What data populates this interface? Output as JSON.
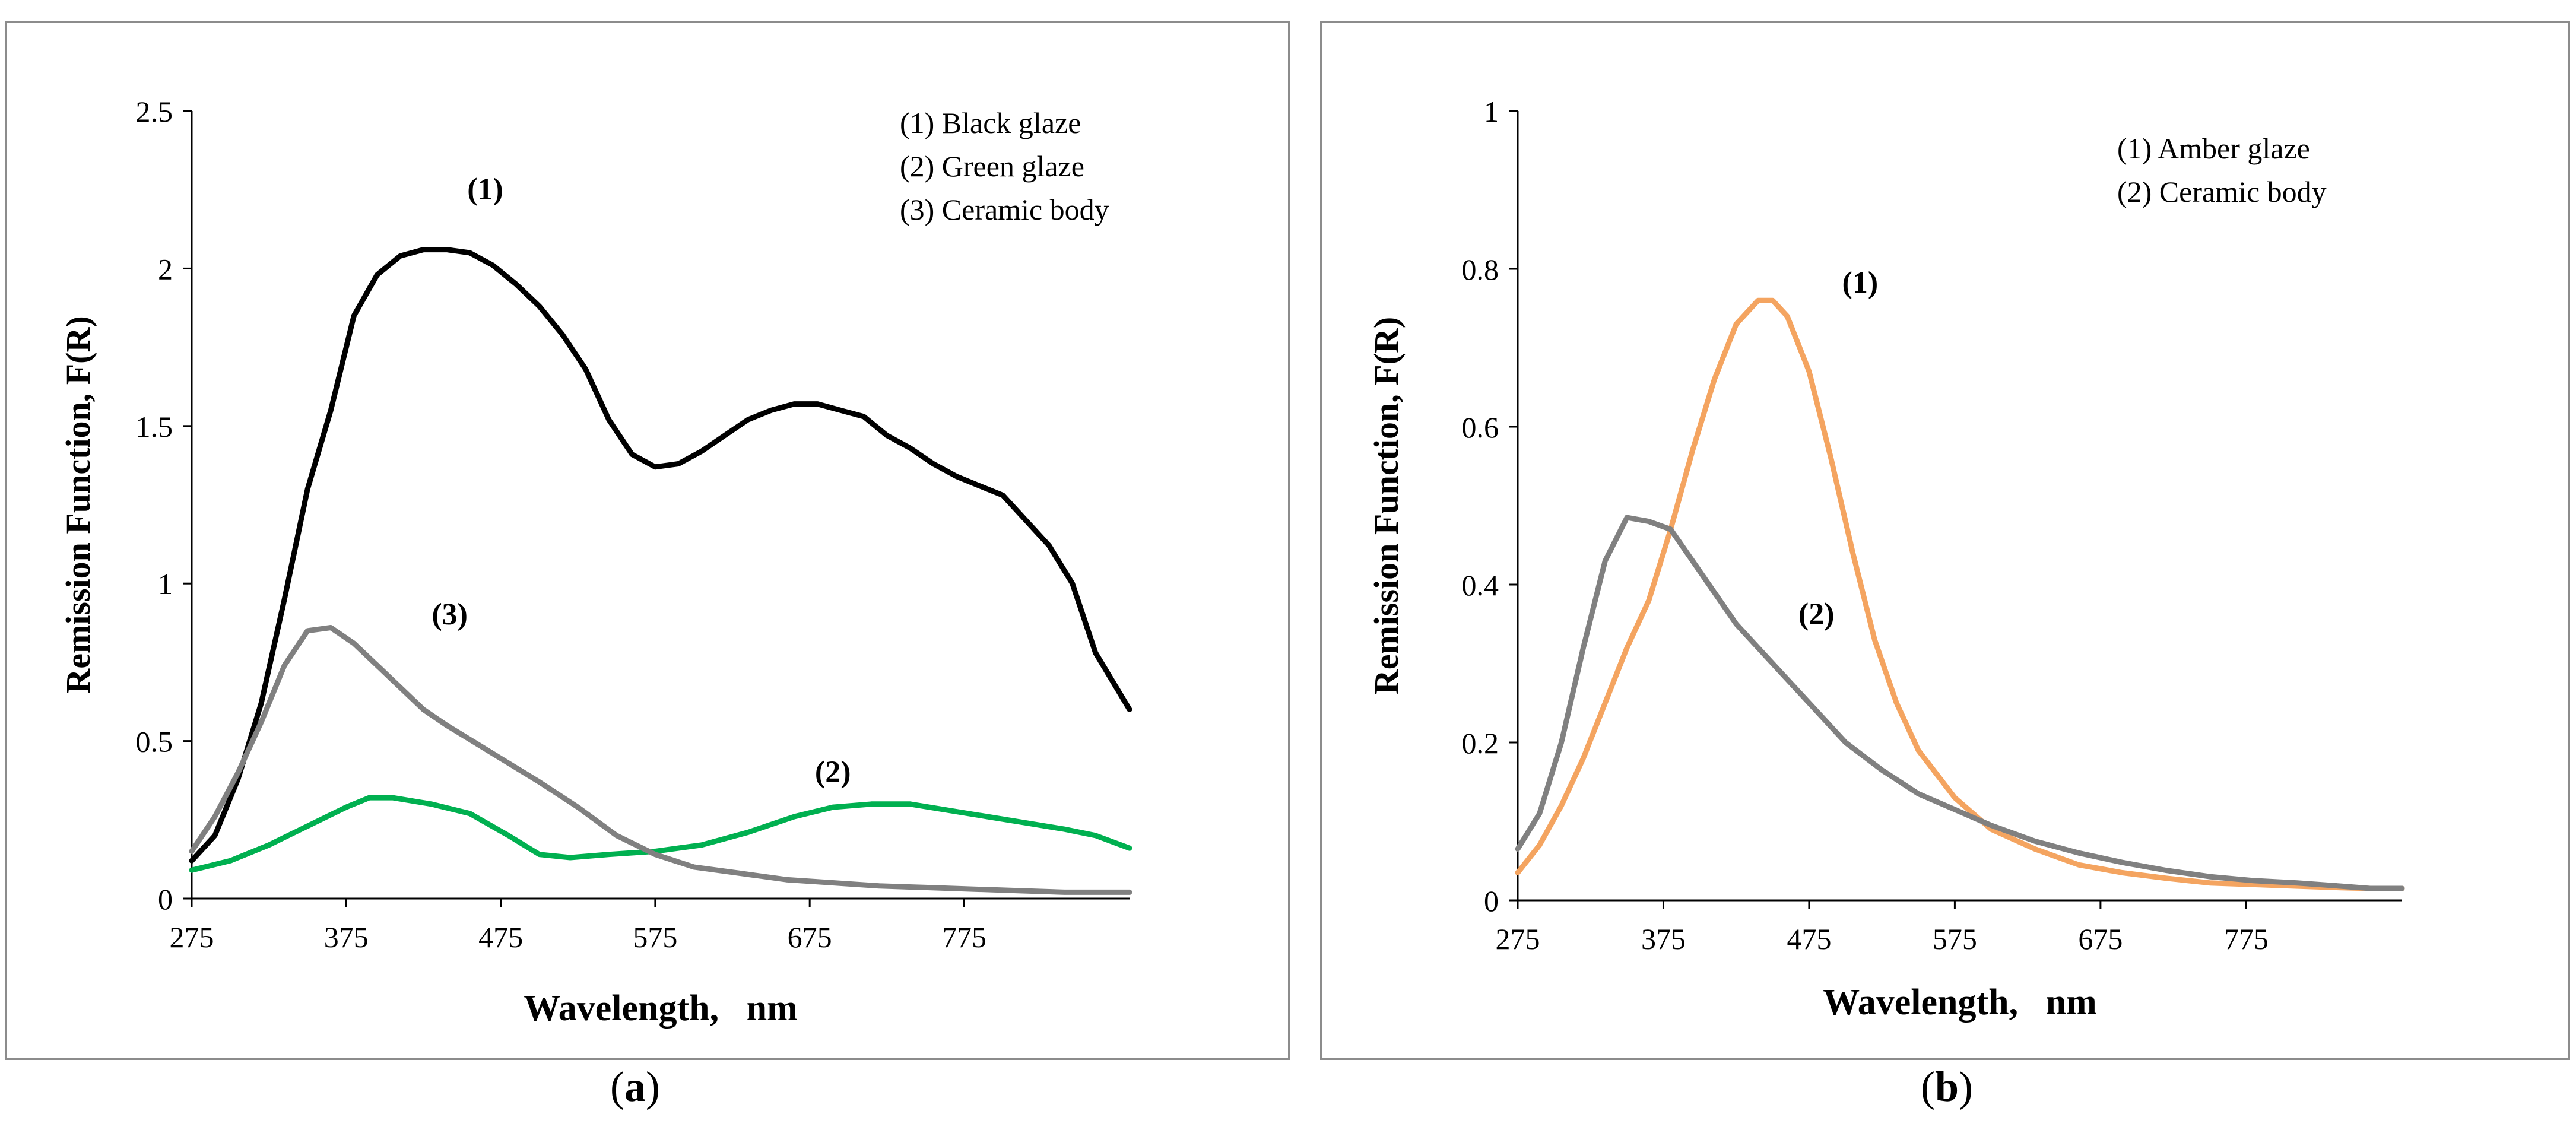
{
  "chart_data": [
    {
      "id": "a",
      "type": "line",
      "caption_letter": "a",
      "xlabel": "Wavelength,   nm",
      "ylabel": "Remission Function, F(R)",
      "xlim": [
        275,
        882
      ],
      "ylim": [
        0,
        2.5
      ],
      "x_ticks": [
        275,
        375,
        475,
        575,
        675,
        775
      ],
      "y_ticks": [
        0,
        0.5,
        1,
        1.5,
        2,
        2.5
      ],
      "y_tick_labels": [
        "0",
        "0.5",
        "1",
        "1.5",
        "2",
        "2.5"
      ],
      "legend": [
        "(1) Black glaze",
        "(2) Green glaze",
        "(3) Ceramic body"
      ],
      "annotations": [
        {
          "text": "(1)",
          "x": 465,
          "y": 2.22
        },
        {
          "text": "(3)",
          "x": 442,
          "y": 0.87
        },
        {
          "text": "(2)",
          "x": 690,
          "y": 0.37
        }
      ],
      "series": [
        {
          "name": "(1) Black glaze",
          "color": "#000000",
          "x": [
            275,
            290,
            305,
            320,
            335,
            350,
            365,
            380,
            395,
            410,
            425,
            440,
            455,
            470,
            485,
            500,
            515,
            530,
            545,
            560,
            575,
            590,
            605,
            620,
            635,
            650,
            665,
            680,
            695,
            710,
            725,
            740,
            755,
            770,
            785,
            800,
            815,
            830,
            845,
            860,
            882
          ],
          "y": [
            0.12,
            0.2,
            0.38,
            0.62,
            0.95,
            1.3,
            1.55,
            1.85,
            1.98,
            2.04,
            2.06,
            2.06,
            2.05,
            2.01,
            1.95,
            1.88,
            1.79,
            1.68,
            1.52,
            1.41,
            1.37,
            1.38,
            1.42,
            1.47,
            1.52,
            1.55,
            1.57,
            1.57,
            1.55,
            1.53,
            1.47,
            1.43,
            1.38,
            1.34,
            1.31,
            1.28,
            1.2,
            1.12,
            1.0,
            0.78,
            0.6
          ]
        },
        {
          "name": "(2) Green glaze",
          "color": "#00b050",
          "x": [
            275,
            300,
            325,
            350,
            375,
            390,
            405,
            430,
            455,
            480,
            500,
            520,
            545,
            575,
            605,
            635,
            665,
            690,
            715,
            740,
            765,
            790,
            815,
            840,
            860,
            882
          ],
          "y": [
            0.09,
            0.12,
            0.17,
            0.23,
            0.29,
            0.32,
            0.32,
            0.3,
            0.27,
            0.2,
            0.14,
            0.13,
            0.14,
            0.15,
            0.17,
            0.21,
            0.26,
            0.29,
            0.3,
            0.3,
            0.28,
            0.26,
            0.24,
            0.22,
            0.2,
            0.16
          ]
        },
        {
          "name": "(3) Ceramic body",
          "color": "#808080",
          "x": [
            275,
            290,
            305,
            320,
            335,
            350,
            365,
            380,
            395,
            410,
            425,
            440,
            460,
            480,
            500,
            525,
            550,
            575,
            600,
            630,
            660,
            690,
            720,
            750,
            780,
            810,
            840,
            860,
            882
          ],
          "y": [
            0.15,
            0.26,
            0.4,
            0.56,
            0.74,
            0.85,
            0.86,
            0.81,
            0.74,
            0.67,
            0.6,
            0.55,
            0.49,
            0.43,
            0.37,
            0.29,
            0.2,
            0.14,
            0.1,
            0.08,
            0.06,
            0.05,
            0.04,
            0.035,
            0.03,
            0.025,
            0.02,
            0.02,
            0.02
          ]
        }
      ]
    },
    {
      "id": "b",
      "type": "line",
      "caption_letter": "b",
      "xlabel": "Wavelength,   nm",
      "ylabel": "Remission Function, F(R)",
      "xlim": [
        275,
        882
      ],
      "ylim": [
        0,
        1
      ],
      "x_ticks": [
        275,
        375,
        475,
        575,
        675,
        775
      ],
      "y_ticks": [
        0,
        0.2,
        0.4,
        0.6,
        0.8,
        1
      ],
      "y_tick_labels": [
        "0",
        "0.2",
        "0.4",
        "0.6",
        "0.8",
        "1"
      ],
      "legend": [
        "(1) Amber glaze",
        "(2) Ceramic body"
      ],
      "annotations": [
        {
          "text": "(1)",
          "x": 510,
          "y": 0.77
        },
        {
          "text": "(2)",
          "x": 480,
          "y": 0.35
        }
      ],
      "series": [
        {
          "name": "(1) Amber glaze",
          "color": "#f4a460",
          "x": [
            275,
            290,
            305,
            320,
            335,
            350,
            365,
            380,
            395,
            410,
            425,
            440,
            450,
            460,
            475,
            490,
            505,
            520,
            535,
            550,
            575,
            600,
            630,
            660,
            690,
            720,
            750,
            780,
            810,
            840,
            860,
            882
          ],
          "y": [
            0.035,
            0.07,
            0.12,
            0.18,
            0.25,
            0.32,
            0.38,
            0.47,
            0.57,
            0.66,
            0.73,
            0.76,
            0.76,
            0.74,
            0.67,
            0.56,
            0.44,
            0.33,
            0.25,
            0.19,
            0.13,
            0.09,
            0.065,
            0.045,
            0.035,
            0.028,
            0.022,
            0.02,
            0.018,
            0.016,
            0.015,
            0.015
          ]
        },
        {
          "name": "(2) Ceramic body",
          "color": "#808080",
          "x": [
            275,
            290,
            305,
            320,
            335,
            350,
            365,
            380,
            395,
            410,
            425,
            440,
            455,
            470,
            485,
            500,
            525,
            550,
            575,
            600,
            630,
            660,
            690,
            720,
            750,
            780,
            810,
            840,
            860,
            882
          ],
          "y": [
            0.065,
            0.11,
            0.2,
            0.32,
            0.43,
            0.485,
            0.48,
            0.47,
            0.43,
            0.39,
            0.35,
            0.32,
            0.29,
            0.26,
            0.23,
            0.2,
            0.165,
            0.135,
            0.115,
            0.095,
            0.075,
            0.06,
            0.048,
            0.038,
            0.03,
            0.025,
            0.022,
            0.018,
            0.015,
            0.015
          ]
        }
      ]
    }
  ]
}
